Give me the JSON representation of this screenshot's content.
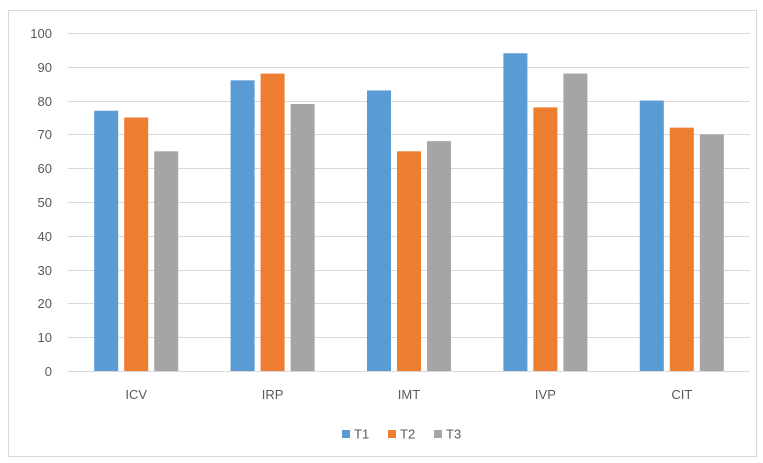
{
  "chart_data": {
    "type": "bar",
    "title": "",
    "xlabel": "",
    "ylabel": "",
    "categories": [
      "ICV",
      "IRP",
      "IMT",
      "IVP",
      "CIT"
    ],
    "series": [
      {
        "name": "T1",
        "color": "#5B9BD5",
        "values": [
          77,
          86,
          83,
          94,
          80
        ]
      },
      {
        "name": "T2",
        "color": "#ED7D31",
        "values": [
          75,
          88,
          65,
          78,
          72
        ]
      },
      {
        "name": "T3",
        "color": "#A5A5A5",
        "values": [
          65,
          79,
          68,
          88,
          70
        ]
      }
    ],
    "ylim": [
      0,
      100
    ],
    "yticks": [
      0,
      10,
      20,
      30,
      40,
      50,
      60,
      70,
      80,
      90,
      100
    ],
    "grid": true,
    "legend_position": "bottom",
    "gridline_color": "#d9d9d9"
  }
}
